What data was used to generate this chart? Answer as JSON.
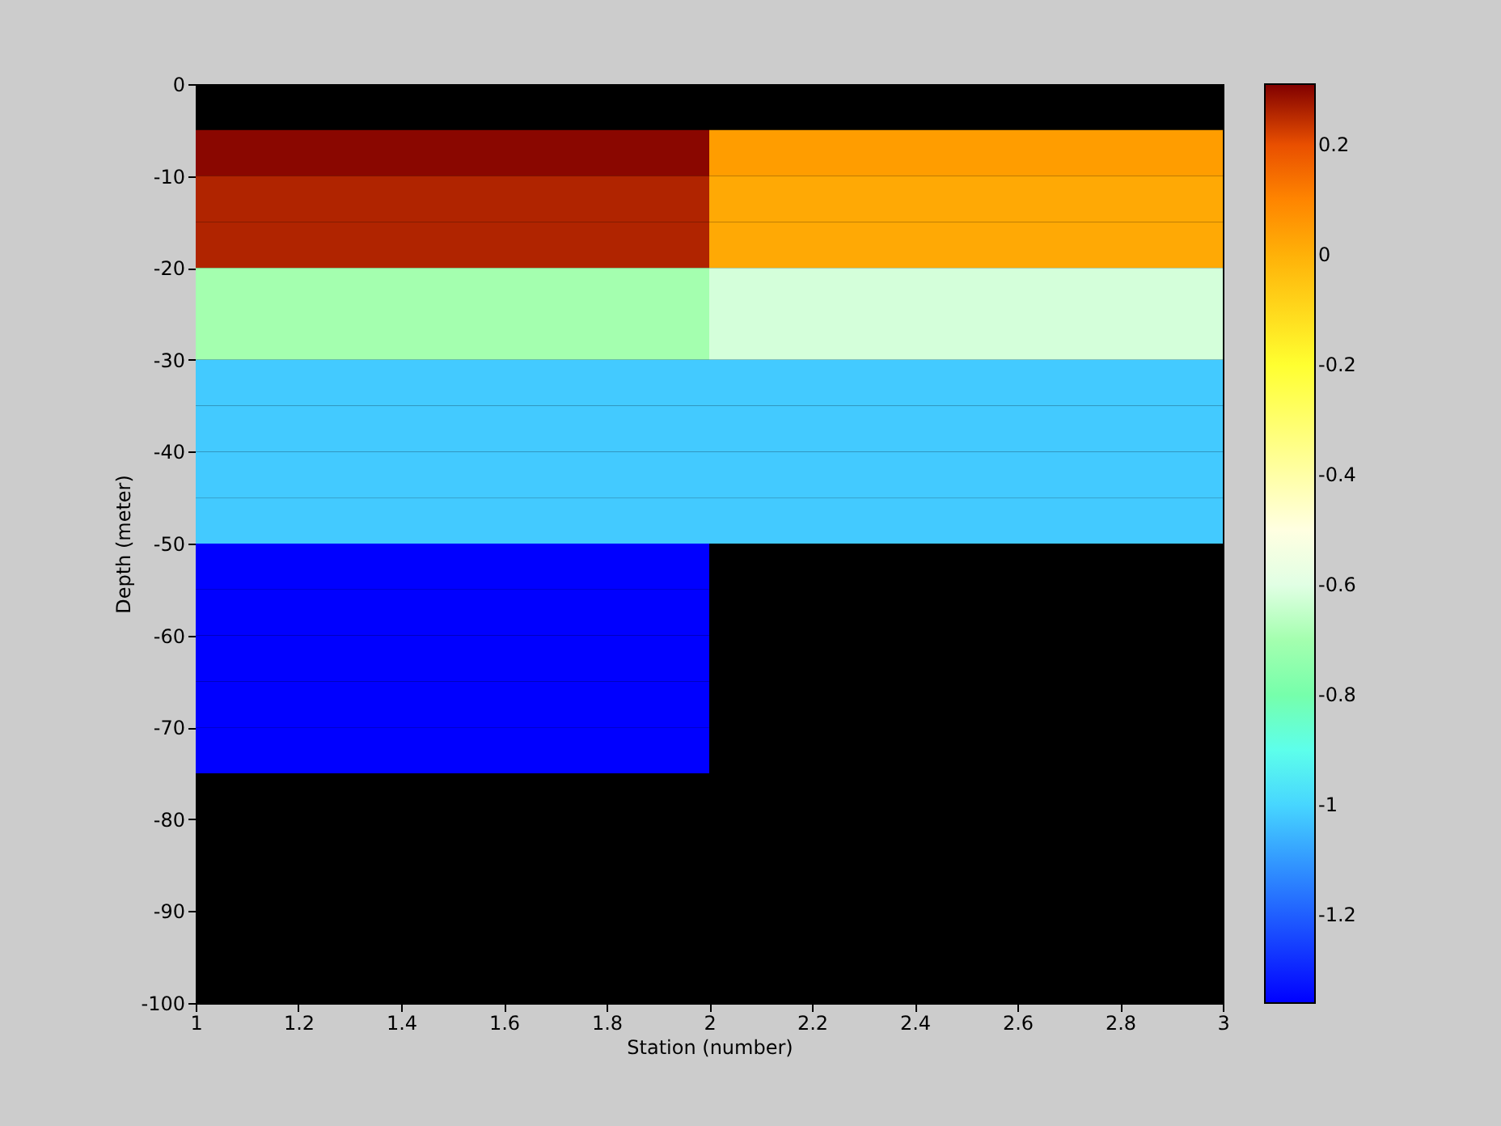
{
  "chart_data": {
    "type": "heatmap",
    "xlabel": "Station (number)",
    "ylabel": "Depth (meter)",
    "x": [
      1.5,
      2.5
    ],
    "y": [
      -7.5,
      -12.5,
      -17.5,
      -22.5,
      -27.5,
      -32.5,
      -37.5,
      -42.5,
      -47.5,
      -52.5,
      -57.5,
      -62.5,
      -67.5,
      -72.5
    ],
    "cells": [
      [
        0.3,
        0.05
      ],
      [
        0.26,
        0.02
      ],
      [
        0.26,
        0.02
      ],
      [
        -0.7,
        -0.62
      ],
      [
        -0.7,
        -0.62
      ],
      [
        -1.02,
        -1.02
      ],
      [
        -1.02,
        -1.02
      ],
      [
        -1.02,
        -1.02
      ],
      [
        -1.02,
        -1.02
      ],
      [
        -1.36,
        null
      ],
      [
        -1.36,
        null
      ],
      [
        -1.36,
        null
      ],
      [
        -1.36,
        null
      ],
      [
        -1.36,
        null
      ]
    ],
    "xlim": [
      1,
      3
    ],
    "xticks": [
      1,
      1.2,
      1.4,
      1.6,
      1.8,
      2,
      2.2,
      2.4,
      2.6,
      2.8,
      3
    ],
    "ylim": [
      -100,
      0
    ],
    "yticks": [
      -100,
      -90,
      -80,
      -70,
      -60,
      -50,
      -40,
      -30,
      -20,
      -10,
      0
    ],
    "clim": [
      -1.36,
      0.31
    ],
    "cticks": [
      -1.2,
      -1,
      -0.8,
      -0.6,
      -0.4,
      -0.2,
      0,
      0.2
    ],
    "grid": false
  }
}
